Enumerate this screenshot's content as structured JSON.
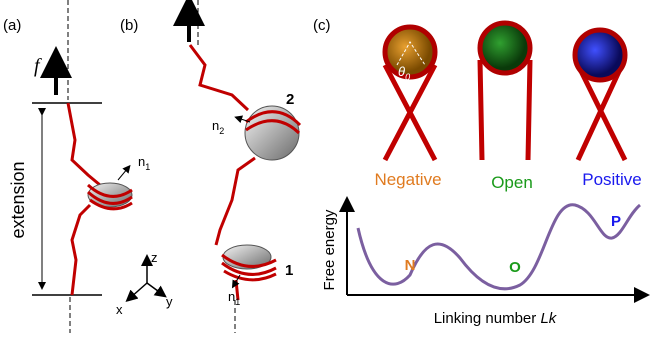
{
  "panels": {
    "a": "(a)",
    "b": "(b)",
    "c": "(c)"
  },
  "panel_a": {
    "force": "f",
    "extension": "extension",
    "normal": {
      "text": "n",
      "sub": "1"
    }
  },
  "axes": {
    "z": "z",
    "x": "x",
    "y": "y"
  },
  "panel_b": {
    "label_2": "2",
    "normal_2": {
      "text": "n",
      "sub": "2"
    },
    "label_1": "1",
    "normal_1": {
      "text": "n",
      "sub": "1"
    }
  },
  "panel_c": {
    "angle": {
      "text": "θ",
      "sub": "0"
    },
    "states": [
      "Negative",
      "Open",
      "Positive"
    ],
    "minima": [
      "N",
      "O",
      "P"
    ],
    "y_label": "Free energy",
    "x_label": {
      "text": "Linking number ",
      "italic": "Lk"
    }
  }
}
